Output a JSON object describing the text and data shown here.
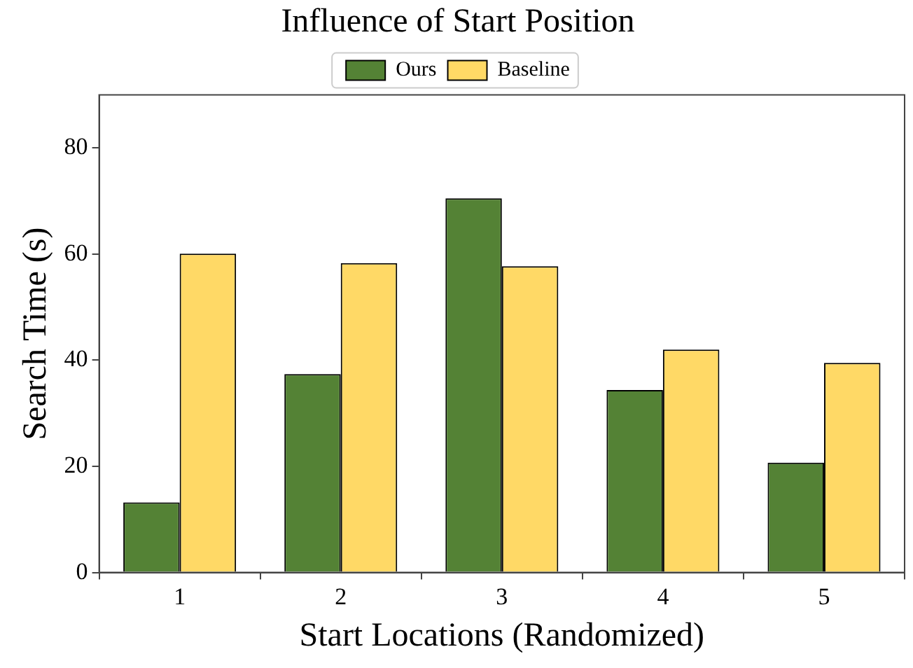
{
  "chart_data": {
    "type": "bar",
    "title": "Influence of Start Position",
    "xlabel": "Start Locations (Randomized)",
    "ylabel": "Search Time (s)",
    "categories": [
      "1",
      "2",
      "3",
      "4",
      "5"
    ],
    "series": [
      {
        "name": "Ours",
        "color": "#548235",
        "values": [
          13.2,
          37.4,
          70.5,
          34.4,
          20.7
        ]
      },
      {
        "name": "Baseline",
        "color": "#ffd966",
        "values": [
          60.1,
          58.3,
          57.7,
          42.0,
          39.5
        ]
      }
    ],
    "ylim": [
      0,
      90
    ],
    "yticks": [
      0,
      20,
      40,
      60,
      80
    ],
    "grid": false,
    "legend": "top"
  }
}
